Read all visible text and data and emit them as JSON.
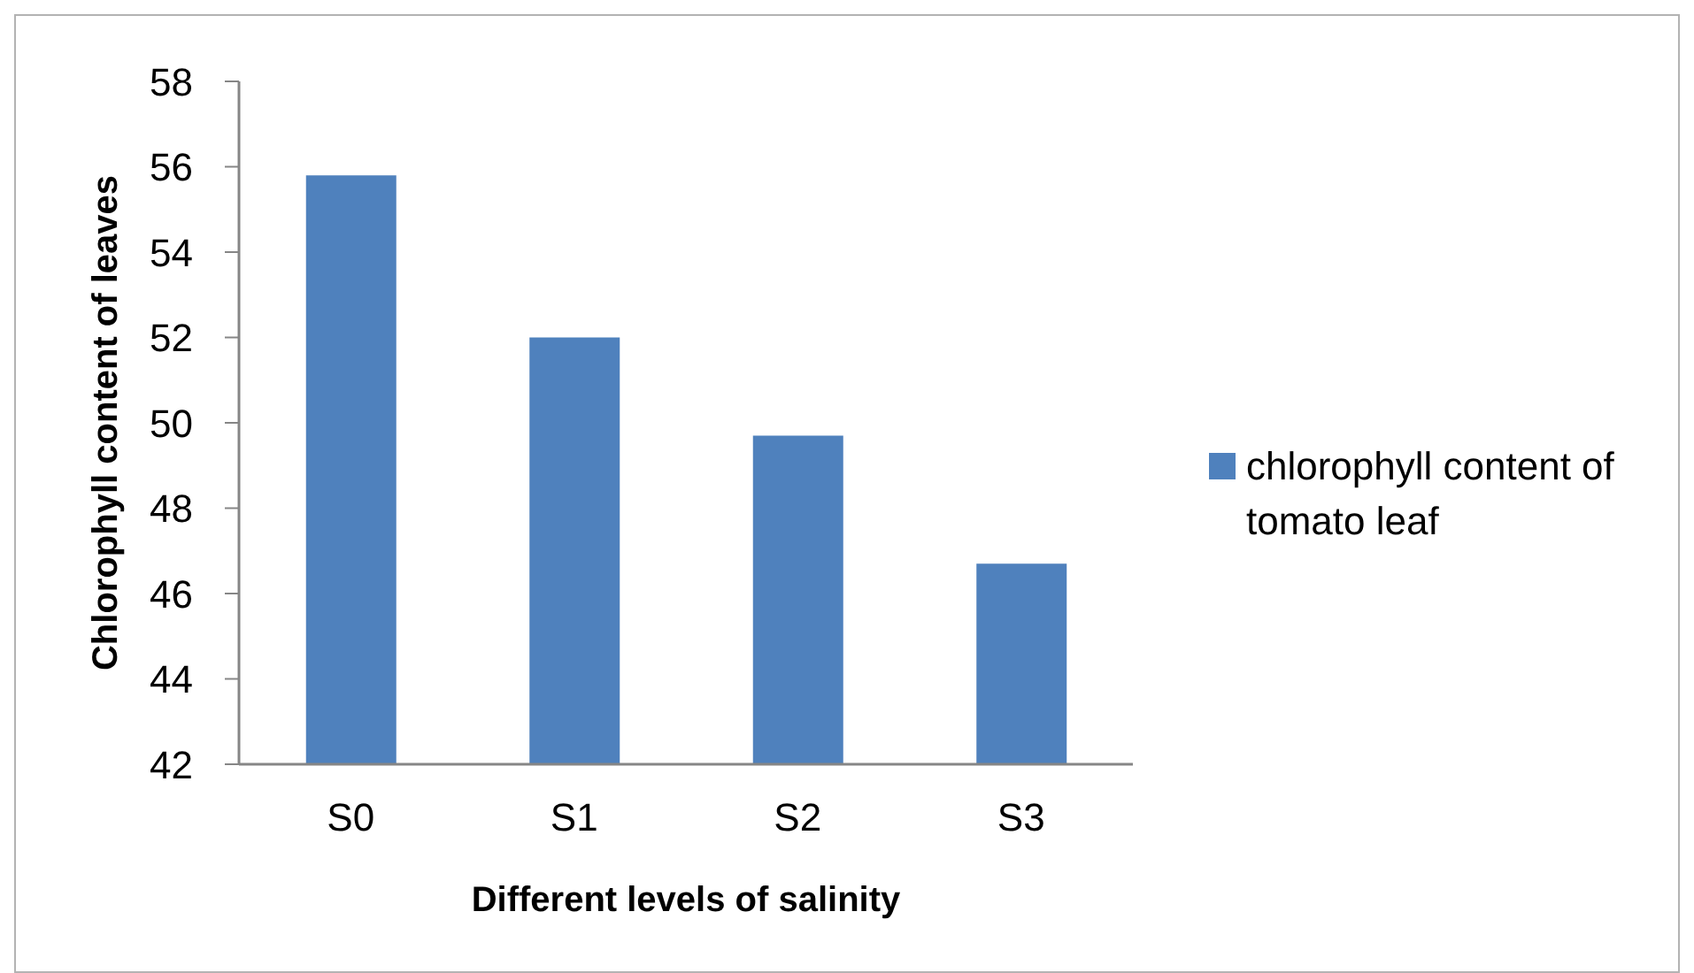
{
  "chart_data": {
    "type": "bar",
    "xlabel": "Different levels of salinity",
    "ylabel": "Chlorophyll content of leaves",
    "categories": [
      "S0",
      "S1",
      "S2",
      "S3"
    ],
    "series": [
      {
        "name": "chlorophyll content of tomato leaf",
        "color": "#4f81bd",
        "values": [
          55.8,
          52.0,
          49.7,
          46.7
        ]
      }
    ],
    "ylim": [
      42,
      58
    ],
    "yticks": [
      42,
      44,
      46,
      48,
      50,
      52,
      54,
      56,
      58
    ],
    "legend": "right"
  }
}
